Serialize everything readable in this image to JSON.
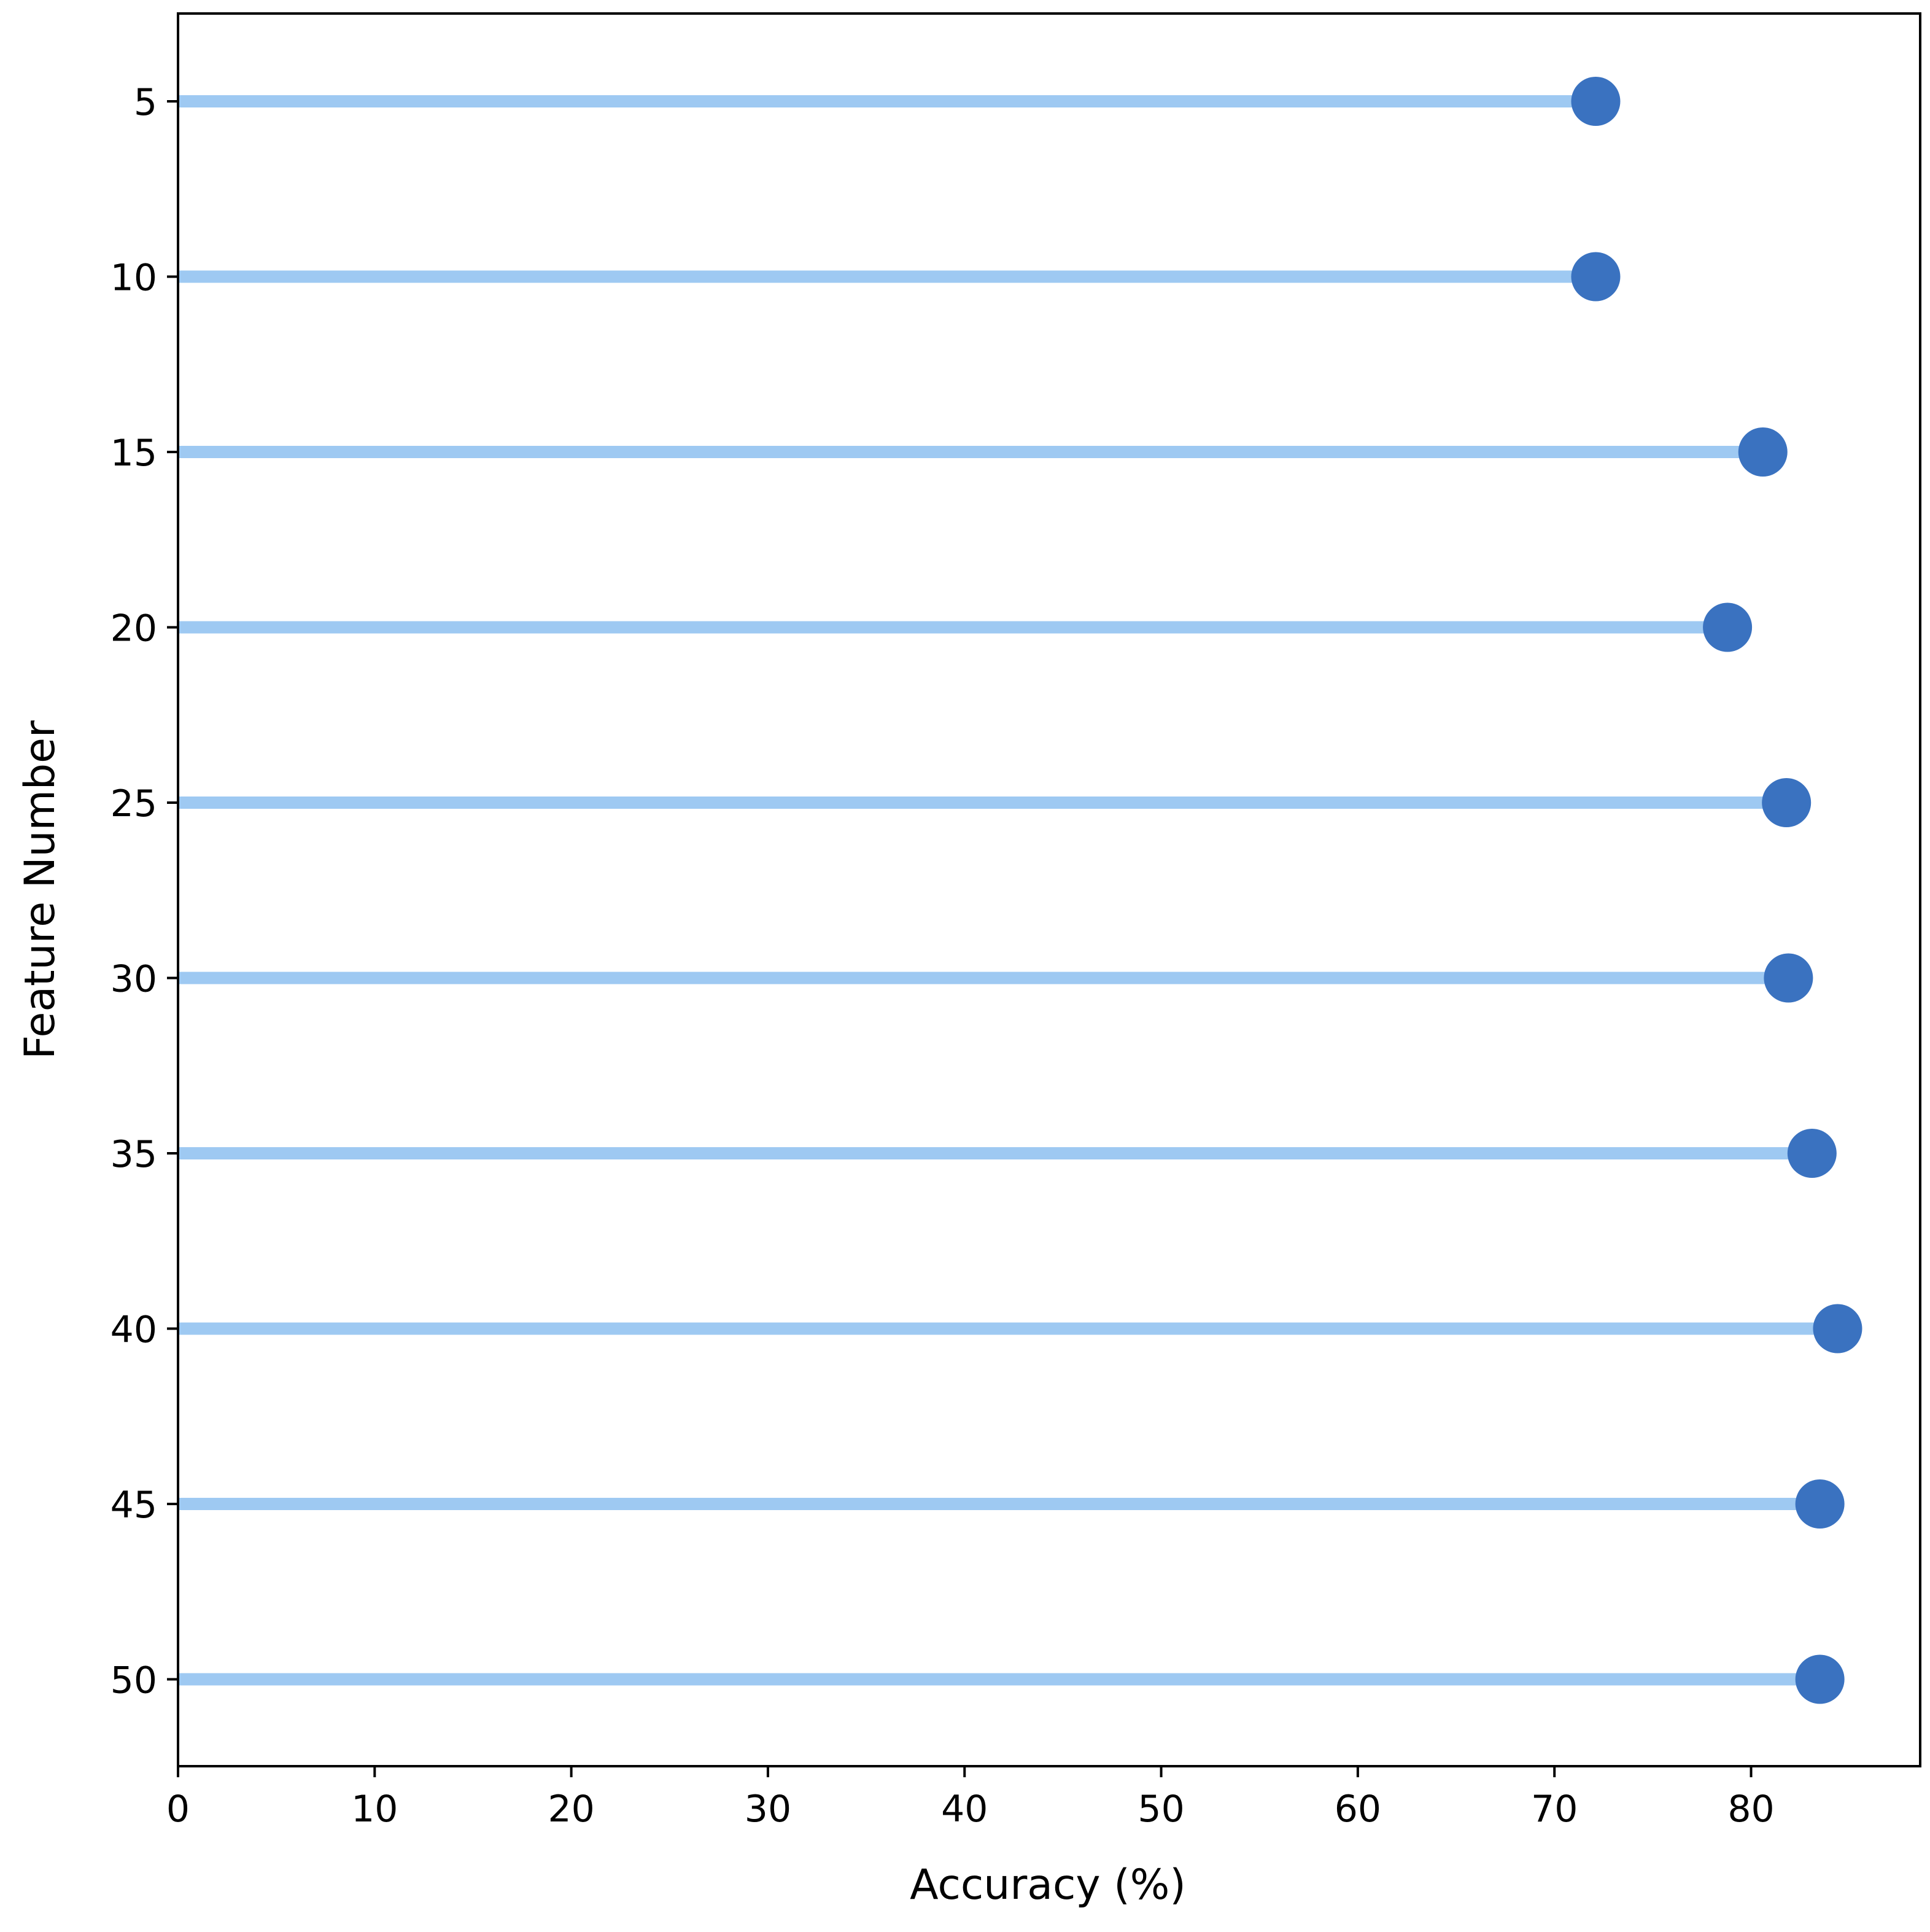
{
  "chart_data": {
    "type": "lollipop",
    "orientation": "horizontal",
    "title": "",
    "xlabel": "Accuracy (%)",
    "ylabel": "Feature Number",
    "categories": [
      "5",
      "10",
      "15",
      "20",
      "25",
      "30",
      "35",
      "40",
      "45",
      "50"
    ],
    "values": [
      72.1,
      72.1,
      80.6,
      78.8,
      81.8,
      81.9,
      83.1,
      84.4,
      83.5,
      83.5
    ],
    "xlim": [
      0,
      88.6
    ],
    "xticks": [
      "0",
      "10",
      "20",
      "30",
      "40",
      "50",
      "60",
      "70",
      "80"
    ],
    "grid": false,
    "legend": "none",
    "colors": {
      "stem": "#9ec9f2",
      "marker": "#3a72c0"
    }
  }
}
